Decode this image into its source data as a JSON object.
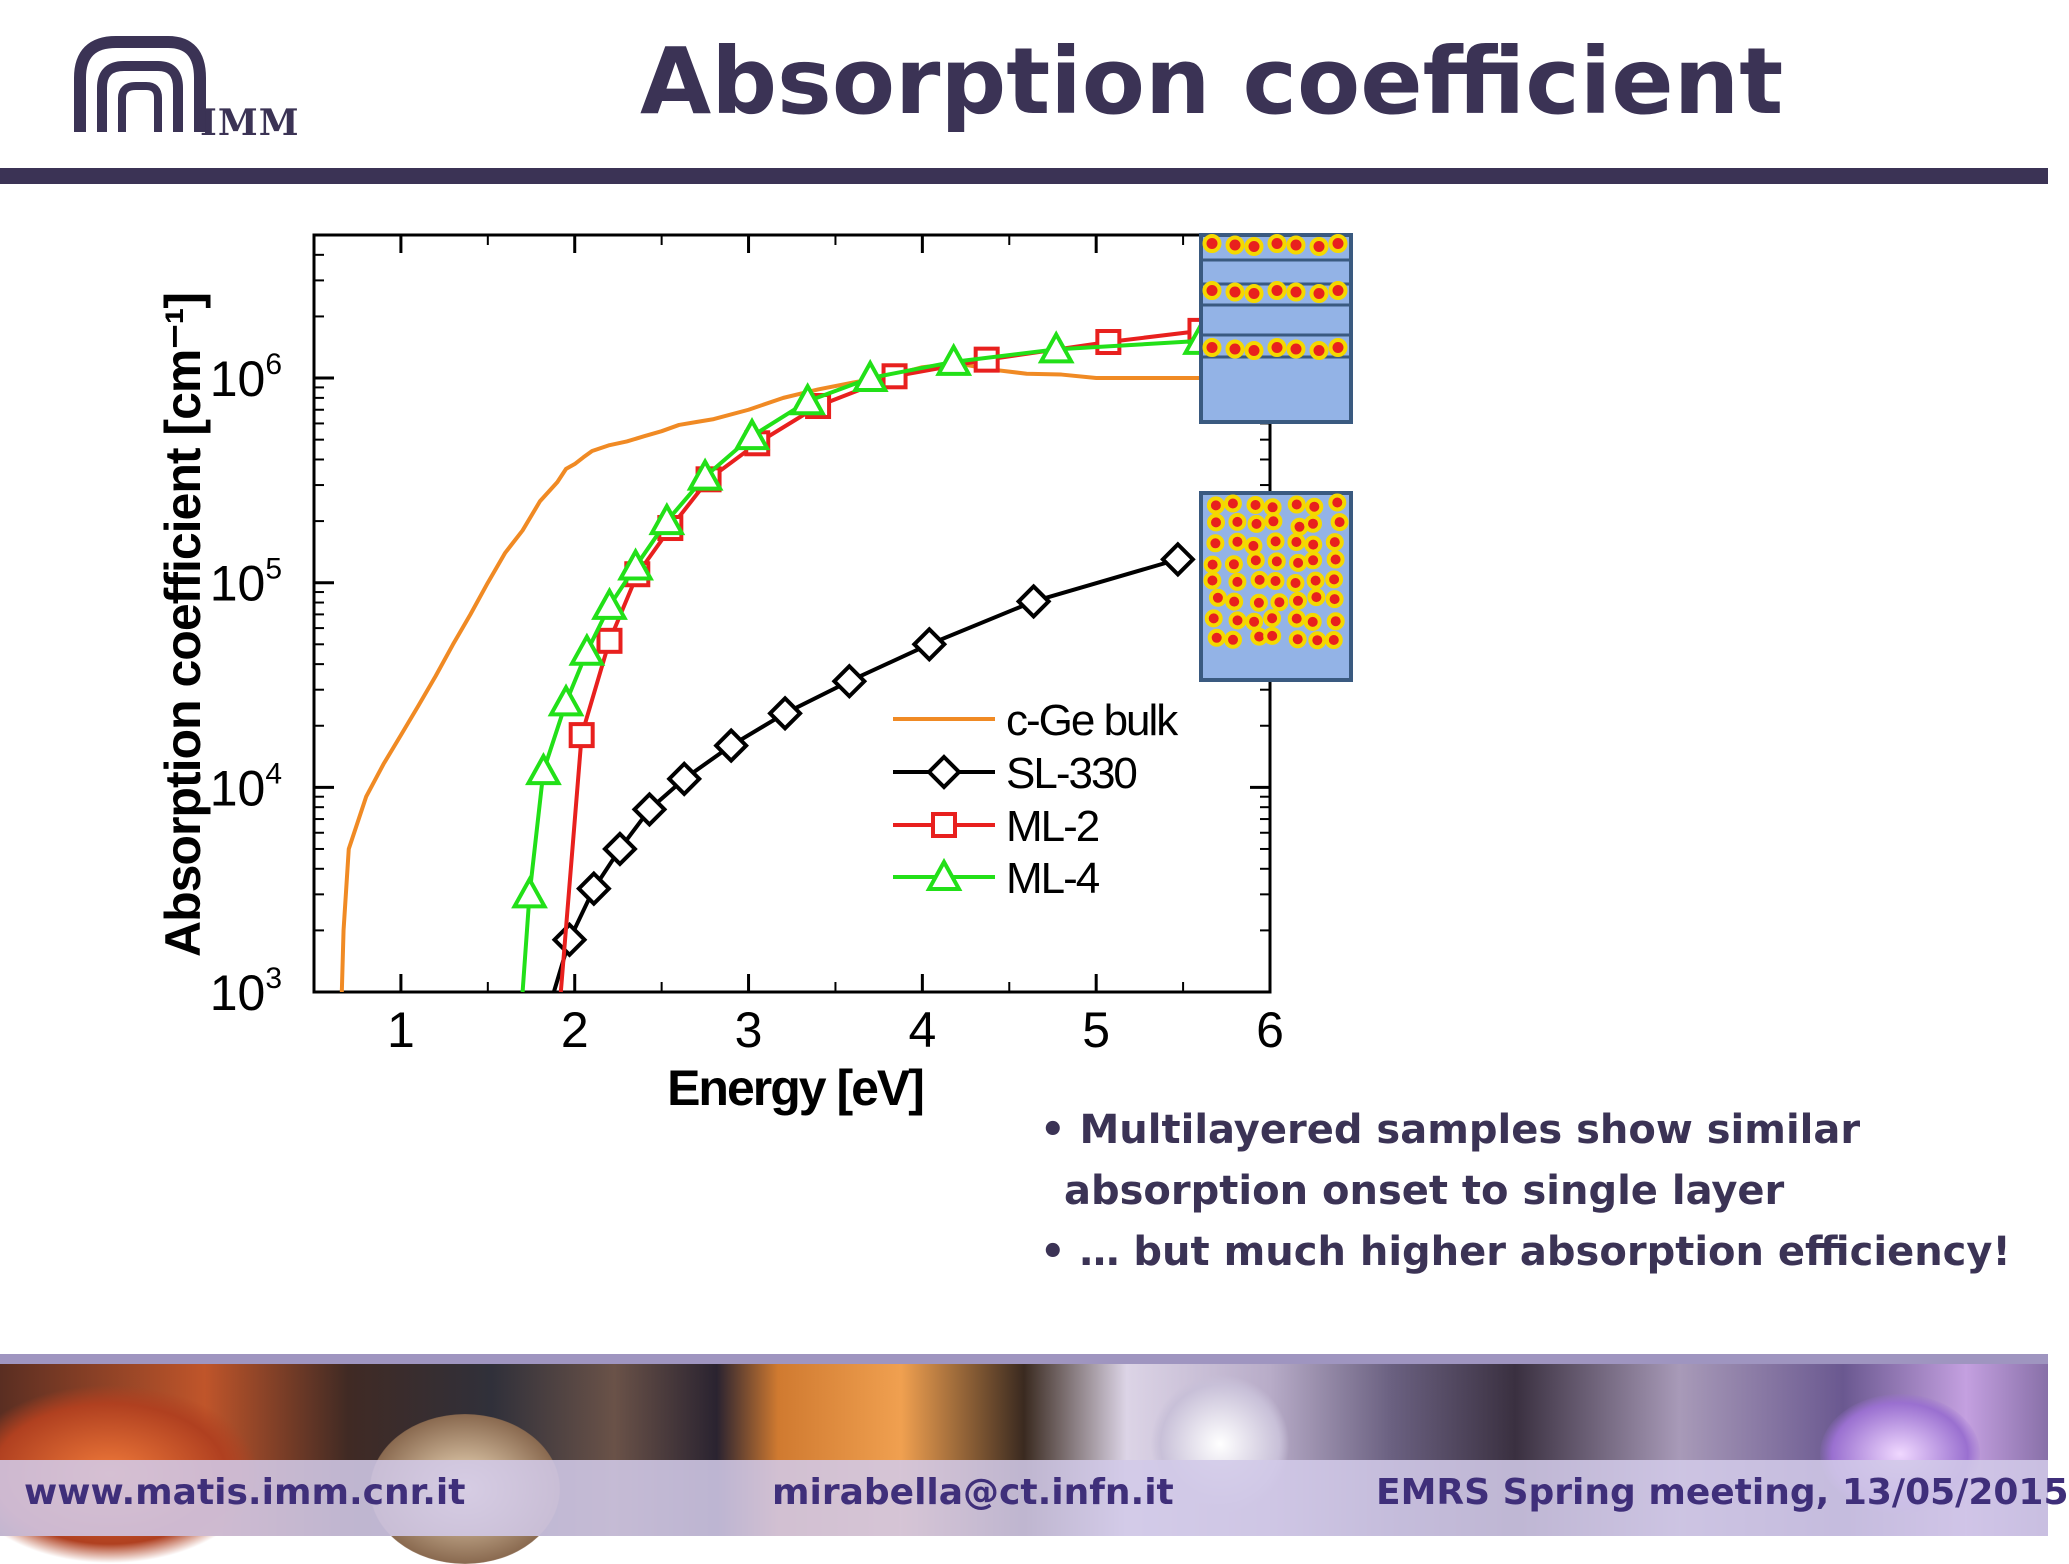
{
  "header": {
    "logo_text": "IMM",
    "title": "Absorption coefficient"
  },
  "chart_data": {
    "type": "line",
    "title": "",
    "xlabel": "Energy [eV]",
    "ylabel": "Absorption coefficient [cm⁻¹]",
    "xlim": [
      0.5,
      6.0
    ],
    "ylim": [
      1000,
      5000000
    ],
    "yscale": "log",
    "x_ticks": [
      "1",
      "2",
      "3",
      "4",
      "5",
      "6"
    ],
    "y_ticks": [
      {
        "base": "10",
        "exp": "3"
      },
      {
        "base": "10",
        "exp": "4"
      },
      {
        "base": "10",
        "exp": "5"
      },
      {
        "base": "10",
        "exp": "6"
      }
    ],
    "legend_position": "lower-right",
    "grid": false,
    "series": [
      {
        "name": "c-Ge bulk",
        "color": "#f08a24",
        "marker": "none",
        "x": [
          0.66,
          0.67,
          0.7,
          0.8,
          0.9,
          1.0,
          1.1,
          1.2,
          1.3,
          1.4,
          1.5,
          1.6,
          1.7,
          1.8,
          1.9,
          1.95,
          2.0,
          2.05,
          2.1,
          2.2,
          2.3,
          2.4,
          2.5,
          2.6,
          2.7,
          2.8,
          3.0,
          3.2,
          3.4,
          3.6,
          3.8,
          4.0,
          4.2,
          4.4,
          4.6,
          4.8,
          5.0,
          5.2,
          5.4,
          5.6
        ],
        "y": [
          1000,
          2000,
          5000,
          9000,
          13000,
          18000,
          25000,
          35000,
          50000,
          70000,
          100000,
          140000,
          180000,
          250000,
          310000,
          360000,
          380000,
          410000,
          440000,
          470000,
          490000,
          520000,
          550000,
          590000,
          610000,
          630000,
          700000,
          800000,
          880000,
          950000,
          1020000,
          1130000,
          1180000,
          1100000,
          1050000,
          1040000,
          1000000,
          1000000,
          1000000,
          1000000
        ]
      },
      {
        "name": "SL-330",
        "color": "#000000",
        "marker": "diamond",
        "x": [
          1.88,
          1.97,
          2.11,
          2.26,
          2.43,
          2.63,
          2.9,
          3.21,
          3.58,
          4.04,
          4.64,
          5.47
        ],
        "y": [
          1000,
          1800,
          3200,
          5000,
          7800,
          11000,
          16000,
          23000,
          33000,
          50000,
          81000,
          130000
        ]
      },
      {
        "name": "ML-2",
        "color": "#e8201e",
        "marker": "square",
        "x": [
          1.92,
          2.04,
          2.2,
          2.36,
          2.55,
          2.77,
          3.05,
          3.4,
          3.84,
          4.37,
          5.07,
          5.6
        ],
        "y": [
          1000,
          18000,
          52000,
          110000,
          185000,
          320000,
          480000,
          730000,
          1020000,
          1230000,
          1500000,
          1700000
        ]
      },
      {
        "name": "ML-4",
        "color": "#22e018",
        "marker": "triangle",
        "x": [
          1.7,
          1.74,
          1.82,
          1.95,
          2.07,
          2.2,
          2.35,
          2.53,
          2.75,
          3.02,
          3.34,
          3.7,
          4.18,
          4.77,
          5.6
        ],
        "y": [
          1000,
          3000,
          12000,
          26000,
          46000,
          77000,
          120000,
          200000,
          330000,
          520000,
          770000,
          1000000,
          1200000,
          1380000,
          1520000
        ]
      }
    ]
  },
  "bullets": [
    "• Multilayered samples show similar",
    "absorption onset to single layer",
    "• … but much higher absorption efficiency!"
  ],
  "footer": {
    "website": "www.matis.imm.cnr.it",
    "email": "mirabella@ct.infn.it",
    "event": "EMRS Spring meeting, 13/05/2015"
  },
  "colors": {
    "title": "#3b3355",
    "footer_text": "#3f2f7a",
    "inset_fill": "#93b3e6",
    "inset_border": "#3a5a80",
    "dot_fill": "#e8201e",
    "dot_ring": "#f5d800"
  }
}
